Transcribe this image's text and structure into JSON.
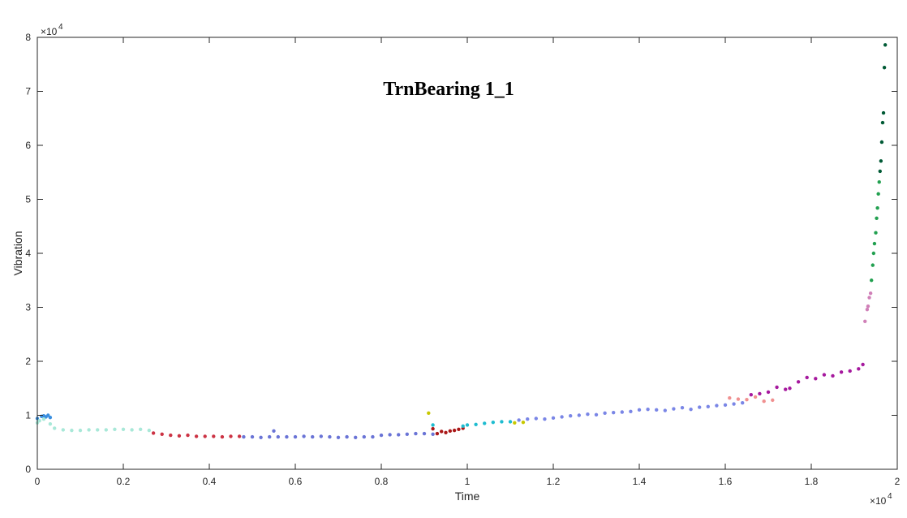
{
  "chart_data": {
    "type": "scatter",
    "title": "TrnBearing 1_1",
    "xlabel": "Time",
    "ylabel": "Vibration",
    "x_exponent_label": "×10",
    "x_exponent_power": "4",
    "y_exponent_label": "×10",
    "y_exponent_power": "4",
    "xlim": [
      0,
      20000
    ],
    "ylim": [
      0,
      80000
    ],
    "x_ticks": [
      0,
      2000,
      4000,
      6000,
      8000,
      10000,
      12000,
      14000,
      16000,
      18000,
      20000
    ],
    "x_tick_labels": [
      "0",
      "0.2",
      "0.4",
      "0.6",
      "0.8",
      "1",
      "1.2",
      "1.4",
      "1.6",
      "1.8",
      "2"
    ],
    "y_ticks": [
      0,
      10000,
      20000,
      30000,
      40000,
      50000,
      60000,
      70000,
      80000
    ],
    "y_tick_labels": [
      "0",
      "1",
      "2",
      "3",
      "4",
      "5",
      "6",
      "7",
      "8"
    ],
    "grid": false,
    "legend": "none",
    "series": [
      {
        "color": "#3a8fe0",
        "points": [
          [
            0,
            9400
          ],
          [
            100,
            9800
          ],
          [
            200,
            9700
          ],
          [
            300,
            9600
          ],
          [
            250,
            10000
          ],
          [
            150,
            9900
          ]
        ]
      },
      {
        "color": "#a8e8d8",
        "points": [
          [
            0,
            8600
          ],
          [
            50,
            9000
          ],
          [
            150,
            9300
          ],
          [
            300,
            8400
          ],
          [
            400,
            7600
          ],
          [
            600,
            7300
          ],
          [
            800,
            7200
          ],
          [
            1000,
            7200
          ],
          [
            1200,
            7300
          ],
          [
            1400,
            7300
          ],
          [
            1600,
            7300
          ],
          [
            1800,
            7400
          ],
          [
            2000,
            7400
          ],
          [
            2200,
            7300
          ],
          [
            2400,
            7400
          ],
          [
            2600,
            7200
          ]
        ]
      },
      {
        "color": "#cc3344",
        "points": [
          [
            2700,
            6700
          ],
          [
            2900,
            6500
          ],
          [
            3100,
            6300
          ],
          [
            3300,
            6200
          ],
          [
            3500,
            6300
          ],
          [
            3700,
            6100
          ],
          [
            3900,
            6100
          ],
          [
            4100,
            6100
          ],
          [
            4300,
            6000
          ],
          [
            4500,
            6100
          ],
          [
            4700,
            6100
          ]
        ]
      },
      {
        "color": "#6a74d6",
        "points": [
          [
            4800,
            6000
          ],
          [
            5000,
            6000
          ],
          [
            5200,
            5900
          ],
          [
            5400,
            6000
          ],
          [
            5500,
            7100
          ],
          [
            5600,
            6000
          ],
          [
            5800,
            6000
          ],
          [
            6000,
            6000
          ],
          [
            6200,
            6100
          ],
          [
            6400,
            6000
          ],
          [
            6600,
            6100
          ],
          [
            6800,
            6000
          ],
          [
            7000,
            5900
          ],
          [
            7200,
            6000
          ],
          [
            7400,
            5900
          ],
          [
            7600,
            6000
          ],
          [
            7800,
            6000
          ],
          [
            8000,
            6300
          ],
          [
            8200,
            6400
          ],
          [
            8400,
            6400
          ],
          [
            8600,
            6500
          ],
          [
            8800,
            6600
          ],
          [
            9000,
            6600
          ],
          [
            9200,
            6500
          ]
        ]
      },
      {
        "color": "#aa1818",
        "points": [
          [
            9200,
            7500
          ],
          [
            9400,
            7000
          ],
          [
            9500,
            6800
          ],
          [
            9600,
            7100
          ],
          [
            9700,
            7200
          ],
          [
            9800,
            7400
          ],
          [
            9900,
            7600
          ],
          [
            9300,
            6600
          ]
        ]
      },
      {
        "color": "#c8c800",
        "points": [
          [
            9100,
            10400
          ],
          [
            11100,
            8600
          ],
          [
            11300,
            8700
          ]
        ]
      },
      {
        "color": "#1fbcd0",
        "points": [
          [
            9200,
            8200
          ],
          [
            9900,
            8000
          ],
          [
            10000,
            8200
          ],
          [
            10200,
            8300
          ],
          [
            10400,
            8500
          ],
          [
            10600,
            8700
          ],
          [
            10800,
            8800
          ],
          [
            11000,
            8800
          ]
        ]
      },
      {
        "color": "#7a86e6",
        "points": [
          [
            11200,
            9100
          ],
          [
            11400,
            9300
          ],
          [
            11600,
            9400
          ],
          [
            11800,
            9300
          ],
          [
            12000,
            9500
          ],
          [
            12200,
            9700
          ],
          [
            12400,
            9900
          ],
          [
            12600,
            10000
          ],
          [
            12800,
            10200
          ],
          [
            13000,
            10100
          ],
          [
            13200,
            10400
          ],
          [
            13400,
            10500
          ],
          [
            13600,
            10600
          ],
          [
            13800,
            10700
          ],
          [
            14000,
            11000
          ],
          [
            14200,
            11100
          ],
          [
            14400,
            11000
          ],
          [
            14600,
            10900
          ],
          [
            14800,
            11200
          ],
          [
            15000,
            11400
          ],
          [
            15200,
            11100
          ],
          [
            15400,
            11500
          ],
          [
            15600,
            11600
          ],
          [
            15800,
            11800
          ],
          [
            16000,
            11900
          ],
          [
            16200,
            12100
          ],
          [
            16400,
            12300
          ]
        ]
      },
      {
        "color": "#f09090",
        "points": [
          [
            16100,
            13200
          ],
          [
            16300,
            13000
          ],
          [
            16500,
            12900
          ],
          [
            16700,
            13400
          ],
          [
            16900,
            12600
          ],
          [
            17100,
            12800
          ]
        ]
      },
      {
        "color": "#a6199e",
        "points": [
          [
            16600,
            13800
          ],
          [
            16800,
            14000
          ],
          [
            17000,
            14300
          ],
          [
            17200,
            15200
          ],
          [
            17400,
            14800
          ],
          [
            17500,
            15000
          ],
          [
            17700,
            16200
          ],
          [
            17900,
            17000
          ],
          [
            18100,
            16800
          ],
          [
            18300,
            17500
          ],
          [
            18500,
            17300
          ],
          [
            18700,
            18000
          ],
          [
            18900,
            18200
          ],
          [
            19100,
            18600
          ],
          [
            19200,
            19400
          ]
        ]
      },
      {
        "color": "#d080b8",
        "points": [
          [
            19250,
            27400
          ],
          [
            19300,
            29600
          ],
          [
            19320,
            30200
          ],
          [
            19350,
            31800
          ],
          [
            19380,
            32600
          ]
        ]
      },
      {
        "color": "#22a050",
        "points": [
          [
            19400,
            35000
          ],
          [
            19430,
            37800
          ],
          [
            19450,
            40000
          ],
          [
            19470,
            41800
          ],
          [
            19500,
            43800
          ],
          [
            19520,
            46500
          ],
          [
            19540,
            48400
          ],
          [
            19560,
            51000
          ],
          [
            19580,
            53200
          ]
        ]
      },
      {
        "color": "#005a35",
        "points": [
          [
            19600,
            55200
          ],
          [
            19620,
            57100
          ],
          [
            19640,
            60600
          ],
          [
            19660,
            64200
          ],
          [
            19680,
            66000
          ],
          [
            19700,
            74400
          ],
          [
            19720,
            78600
          ]
        ]
      }
    ]
  }
}
